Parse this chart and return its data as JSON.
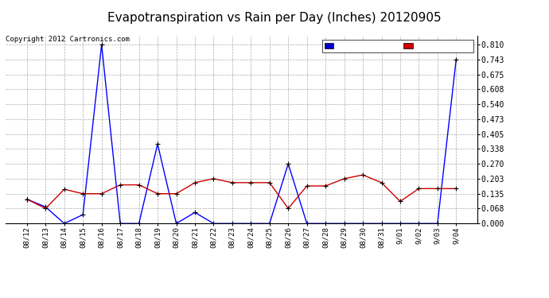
{
  "title": "Evapotranspiration vs Rain per Day (Inches) 20120905",
  "copyright": "Copyright 2012 Cartronics.com",
  "x_labels": [
    "08/12",
    "08/13",
    "08/14",
    "08/15",
    "08/16",
    "08/17",
    "08/18",
    "08/19",
    "08/20",
    "08/21",
    "08/22",
    "08/23",
    "08/24",
    "08/25",
    "08/26",
    "08/27",
    "08/28",
    "08/29",
    "08/30",
    "08/31",
    "9/01",
    "9/02",
    "9/03",
    "9/04"
  ],
  "rain_values": [
    0.11,
    0.075,
    0.0,
    0.04,
    0.81,
    0.0,
    0.0,
    0.36,
    0.0,
    0.05,
    0.0,
    0.0,
    0.0,
    0.0,
    0.27,
    0.0,
    0.0,
    0.0,
    0.0,
    0.0,
    0.0,
    0.0,
    0.0,
    0.743
  ],
  "et_values": [
    0.11,
    0.068,
    0.155,
    0.135,
    0.135,
    0.175,
    0.175,
    0.135,
    0.135,
    0.185,
    0.203,
    0.185,
    0.185,
    0.185,
    0.068,
    0.17,
    0.17,
    0.203,
    0.22,
    0.185,
    0.1,
    0.158,
    0.158,
    0.158
  ],
  "rain_color": "#0000ff",
  "et_color": "#cc0000",
  "bg_color": "#ffffff",
  "grid_color": "#aaaaaa",
  "title_fontsize": 11,
  "legend_rain_bg": "#0000cc",
  "legend_et_bg": "#cc0000",
  "yticks": [
    0.0,
    0.068,
    0.135,
    0.203,
    0.27,
    0.338,
    0.405,
    0.473,
    0.54,
    0.608,
    0.675,
    0.743,
    0.81
  ],
  "ymax": 0.85
}
